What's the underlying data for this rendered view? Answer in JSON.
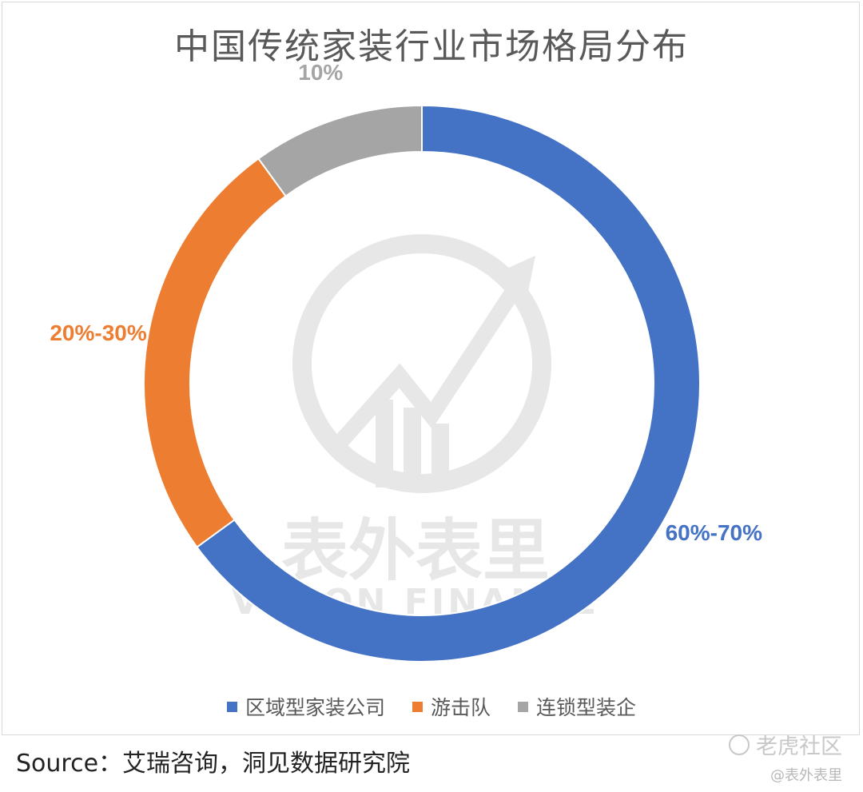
{
  "chart_data": {
    "type": "pie",
    "donut": true,
    "title": "中国传统家装行业市场格局分布",
    "categories": [
      "区域型家装公司",
      "游击队",
      "连锁型装企"
    ],
    "values": [
      65,
      25,
      10
    ],
    "labels": [
      "60%-70%",
      "20%-30%",
      "10%"
    ],
    "colors": [
      "#4472C4",
      "#ED7D31",
      "#A5A5A5"
    ],
    "legend_position": "bottom"
  },
  "watermark": {
    "cn": "表外表里",
    "en": "VISION FINANCE"
  },
  "footer": {
    "source": "Source：艾瑞咨询，洞见数据研究院",
    "tiger": "老虎社区",
    "handle": "@表外表里"
  }
}
